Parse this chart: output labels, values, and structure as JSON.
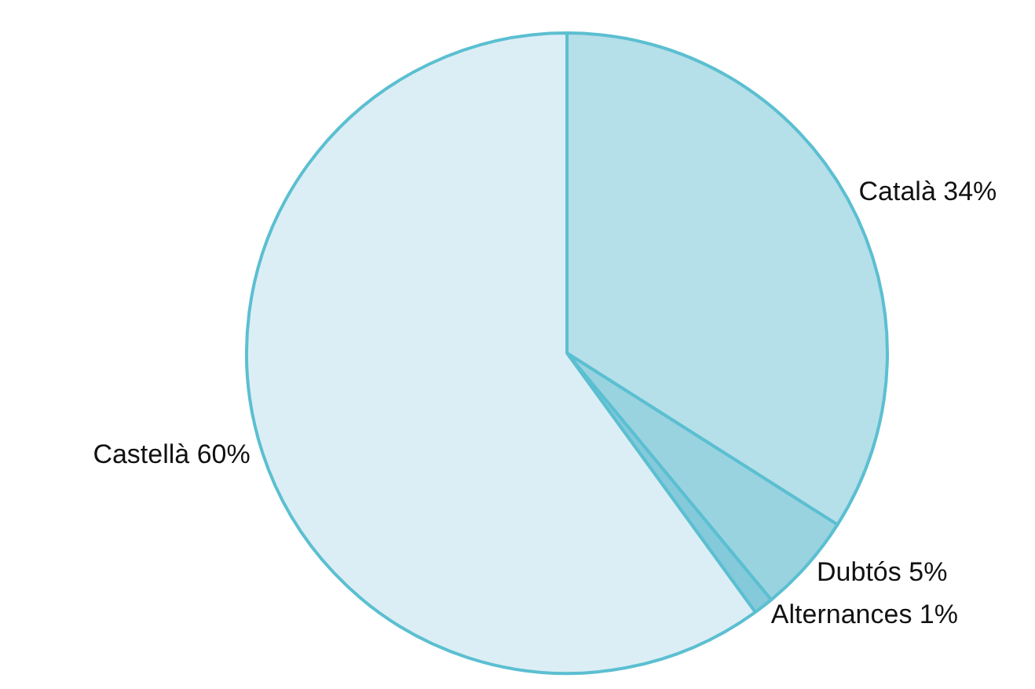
{
  "chart_data": {
    "type": "pie",
    "categories": [
      "Català",
      "Dubtós",
      "Alternances",
      "Castellà"
    ],
    "values": [
      34,
      5,
      1,
      60
    ],
    "value_labels": [
      "34%",
      "5%",
      "1%",
      "60%"
    ],
    "colors": [
      "#b5dfe9",
      "#9ad3e0",
      "#84cadb",
      "#dceef5"
    ],
    "legend": false
  }
}
